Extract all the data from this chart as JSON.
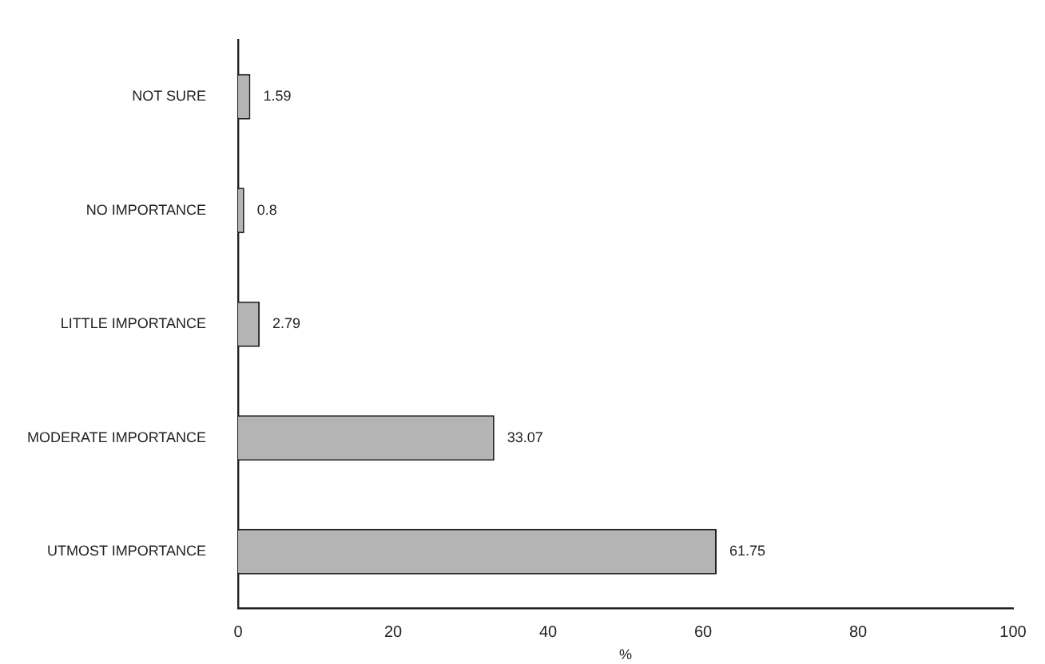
{
  "chart_data": {
    "type": "bar",
    "orientation": "horizontal",
    "xlabel": "%",
    "categories": [
      "NOT SURE",
      "NO IMPORTANCE",
      "LITTLE IMPORTANCE",
      "MODERATE IMPORTANCE",
      "UTMOST IMPORTANCE"
    ],
    "values": [
      1.59,
      0.8,
      2.79,
      33.07,
      61.75
    ],
    "color": "#b4b4b4",
    "xlim": [
      0,
      100
    ],
    "xticks": [
      0,
      20,
      40,
      60,
      80,
      100
    ],
    "grid": false,
    "legend": false,
    "data_labels": true
  }
}
